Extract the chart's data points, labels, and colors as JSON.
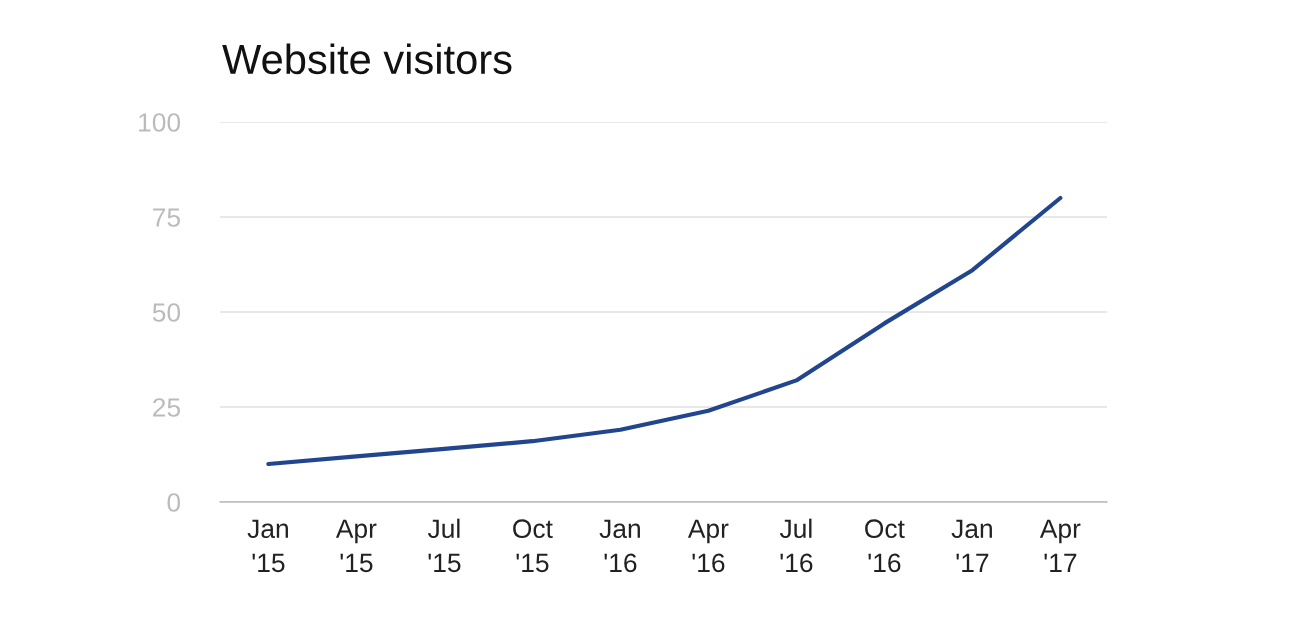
{
  "chart_data": {
    "type": "line",
    "title": "Website visitors",
    "categories": [
      "Jan\n'15",
      "Apr\n'15",
      "Jul\n'15",
      "Oct\n'15",
      "Jan\n'16",
      "Apr\n'16",
      "Jul\n'16",
      "Oct\n'16",
      "Jan\n'17",
      "Apr\n'17"
    ],
    "series": [
      {
        "color": "#22468e",
        "values": [
          10,
          12,
          14,
          16,
          19,
          24,
          32,
          47,
          61,
          80
        ]
      }
    ],
    "ylim": [
      0,
      100
    ],
    "yticks": [
      0,
      25,
      50,
      75,
      100
    ],
    "grid": "y",
    "legend": false,
    "marker": "none",
    "line_style": "solid"
  }
}
